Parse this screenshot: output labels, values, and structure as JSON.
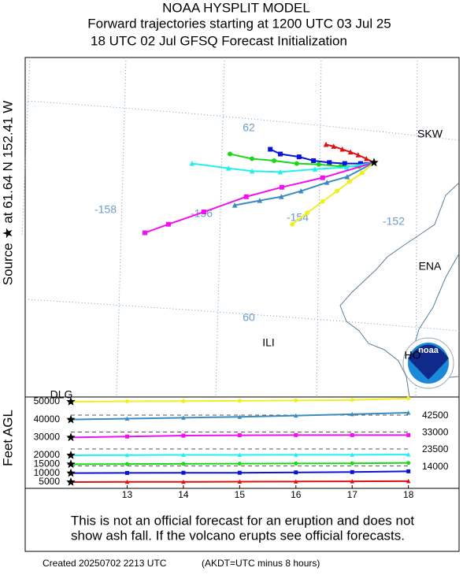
{
  "header": {
    "title": "NOAA HYSPLIT MODEL",
    "subtitle": "Forward trajectories starting at 1200 UTC 03 Jul 25",
    "subtitle2": "18 UTC 02 Jul    GFSQ  Forecast Initialization"
  },
  "source_label": "Source ★  at   61.64 N  152.41 W",
  "logo": "noaa",
  "chart_data": [
    {
      "type": "map",
      "lon_ticks": [
        -158,
        -156,
        -154,
        -152
      ],
      "lat_ticks": [
        62,
        60
      ],
      "stations": [
        "SKW",
        "ENA",
        "ILI",
        "HO",
        "DLG"
      ],
      "series": [
        {
          "color": "#e01010",
          "marker": "triangle",
          "lon": [
            -152.41,
            -152.57,
            -152.74,
            -152.9,
            -153.07,
            -153.25,
            -153.41
          ],
          "lat": [
            61.64,
            61.68,
            61.72,
            61.75,
            61.78,
            61.81,
            61.83
          ]
        },
        {
          "color": "#0a14d8",
          "marker": "square",
          "lon": [
            -152.41,
            -152.69,
            -153.02,
            -153.34,
            -153.67,
            -153.97,
            -154.36,
            -154.57
          ],
          "lat": [
            61.64,
            61.63,
            61.63,
            61.64,
            61.66,
            61.7,
            61.73,
            61.78
          ]
        },
        {
          "color": "#18d818",
          "marker": "circle",
          "lon": [
            -152.41,
            -152.72,
            -153.11,
            -153.56,
            -154.02,
            -154.49,
            -154.95,
            -155.41
          ],
          "lat": [
            61.64,
            61.6,
            61.6,
            61.62,
            61.63,
            61.66,
            61.68,
            61.73
          ]
        },
        {
          "color": "#20f0f0",
          "marker": "triangle",
          "lon": [
            -152.41,
            -152.98,
            -153.64,
            -154.36,
            -154.95,
            -155.44,
            -156.2
          ],
          "lat": [
            61.64,
            61.59,
            61.57,
            61.54,
            61.55,
            61.58,
            61.63
          ]
        },
        {
          "color": "#f010f0",
          "marker": "square",
          "lon": [
            -152.41,
            -153.48,
            -154.33,
            -155.07,
            -155.95,
            -156.69,
            -157.18
          ],
          "lat": [
            61.64,
            61.48,
            61.38,
            61.28,
            61.12,
            60.99,
            60.9
          ]
        },
        {
          "color": "#3a8cc0",
          "marker": "triangle",
          "lon": [
            -152.41,
            -152.97,
            -153.39,
            -153.93,
            -154.34,
            -154.79,
            -155.31
          ],
          "lat": [
            61.64,
            61.49,
            61.43,
            61.34,
            61.28,
            61.24,
            61.19
          ]
        },
        {
          "color": "#f0f020",
          "marker": "circle",
          "lon": [
            -152.41,
            -152.66,
            -152.92,
            -153.18,
            -153.48,
            -153.8,
            -154.11
          ],
          "lat": [
            61.64,
            61.53,
            61.44,
            61.34,
            61.23,
            61.11,
            60.99
          ]
        }
      ]
    },
    {
      "type": "line",
      "y_label": "Feet AGL",
      "x": [
        12,
        13,
        14,
        15,
        16,
        17,
        18
      ],
      "xlim": [
        12,
        18.9
      ],
      "xticks": [
        13,
        14,
        15,
        16,
        17,
        18
      ],
      "ylim": [
        1470,
        52640
      ],
      "yticks": [
        5000,
        10000,
        15000,
        20000,
        30000,
        40000,
        50000
      ],
      "reference_lines": [
        42500,
        33000,
        23500,
        14000
      ],
      "series": [
        {
          "color": "#e01010",
          "marker": "triangle",
          "values": [
            5000,
            5100,
            5100,
            5200,
            5300,
            5400,
            5500
          ]
        },
        {
          "color": "#0a14d8",
          "marker": "square",
          "values": [
            10000,
            10100,
            10200,
            10200,
            10400,
            10600,
            11000
          ]
        },
        {
          "color": "#18d818",
          "marker": "circle",
          "values": [
            15000,
            15100,
            15200,
            15300,
            15400,
            15500,
            15700
          ]
        },
        {
          "color": "#20f0f0",
          "marker": "triangle",
          "values": [
            20000,
            20100,
            20200,
            20200,
            20300,
            20300,
            20400
          ]
        },
        {
          "color": "#f010f0",
          "marker": "square",
          "values": [
            30000,
            30500,
            31000,
            31200,
            31300,
            31300,
            31300
          ]
        },
        {
          "color": "#3a8cc0",
          "marker": "triangle",
          "values": [
            40000,
            40500,
            41000,
            41500,
            42200,
            43000,
            43800
          ]
        },
        {
          "color": "#f0f020",
          "marker": "circle",
          "values": [
            50000,
            50200,
            50300,
            50500,
            50700,
            51000,
            51800
          ]
        }
      ]
    }
  ],
  "footer": {
    "disclaimer_1": "This is not an official forecast for an eruption and does not",
    "disclaimer_2": "show ash fall. If the volcano erupts see official forecasts.",
    "created": "Created 20250702 2213 UTC",
    "note": "(AKDT=UTC minus 8 hours)"
  }
}
